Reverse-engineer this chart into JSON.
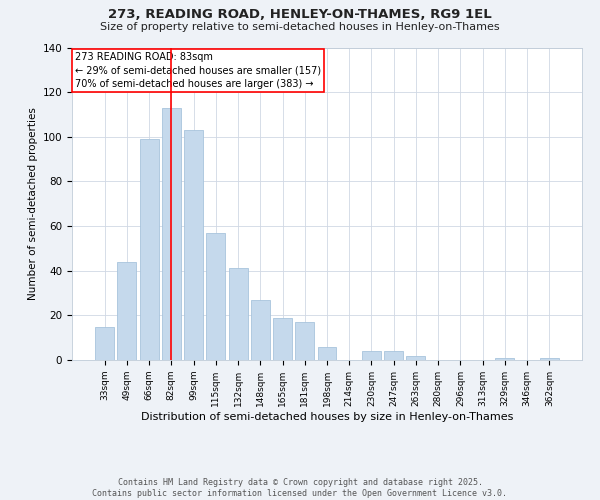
{
  "title1": "273, READING ROAD, HENLEY-ON-THAMES, RG9 1EL",
  "title2": "Size of property relative to semi-detached houses in Henley-on-Thames",
  "xlabel": "Distribution of semi-detached houses by size in Henley-on-Thames",
  "ylabel": "Number of semi-detached properties",
  "categories": [
    "33sqm",
    "49sqm",
    "66sqm",
    "82sqm",
    "99sqm",
    "115sqm",
    "132sqm",
    "148sqm",
    "165sqm",
    "181sqm",
    "198sqm",
    "214sqm",
    "230sqm",
    "247sqm",
    "263sqm",
    "280sqm",
    "296sqm",
    "313sqm",
    "329sqm",
    "346sqm",
    "362sqm"
  ],
  "values": [
    15,
    44,
    99,
    113,
    103,
    57,
    41,
    27,
    19,
    17,
    6,
    0,
    4,
    4,
    2,
    0,
    0,
    0,
    1,
    0,
    1
  ],
  "bar_color": "#c5d9ec",
  "bar_edge_color": "#a8c4dc",
  "vline_x": 3,
  "annotation_text1": "273 READING ROAD: 83sqm",
  "annotation_text2": "← 29% of semi-detached houses are smaller (157)",
  "annotation_text3": "70% of semi-detached houses are larger (383) →",
  "footer1": "Contains HM Land Registry data © Crown copyright and database right 2025.",
  "footer2": "Contains public sector information licensed under the Open Government Licence v3.0.",
  "ylim": [
    0,
    140
  ],
  "yticks": [
    0,
    20,
    40,
    60,
    80,
    100,
    120,
    140
  ],
  "bg_color": "#eef2f7",
  "plot_bg_color": "#ffffff",
  "grid_color": "#d0d8e4"
}
